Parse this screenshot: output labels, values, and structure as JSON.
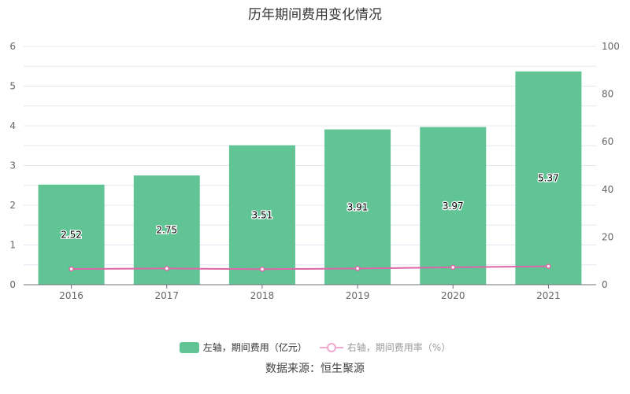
{
  "chart_data": {
    "type": "bar",
    "title": "历年期间费用变化情况",
    "categories": [
      "2016",
      "2017",
      "2018",
      "2019",
      "2020",
      "2021"
    ],
    "series": [
      {
        "name": "左轴，期间费用（亿元）",
        "type": "bar",
        "axis": "left",
        "values": [
          2.52,
          2.75,
          3.51,
          3.91,
          3.97,
          5.37
        ],
        "color": "#61c494"
      },
      {
        "name": "右轴，期间费用率（%）",
        "type": "line",
        "axis": "right",
        "values": [
          6.6,
          6.8,
          6.5,
          6.8,
          7.3,
          7.7
        ],
        "color": "#e066aa"
      }
    ],
    "ylim_left": [
      0,
      6
    ],
    "yticks_left": [
      "0",
      "1",
      "2",
      "3",
      "4",
      "5",
      "6"
    ],
    "ylim_right": [
      0,
      100
    ],
    "yticks_right": [
      "0",
      "20",
      "40",
      "60",
      "80",
      "100"
    ],
    "grid": true,
    "legend_position": "bottom"
  },
  "source": "数据来源：恒生聚源"
}
